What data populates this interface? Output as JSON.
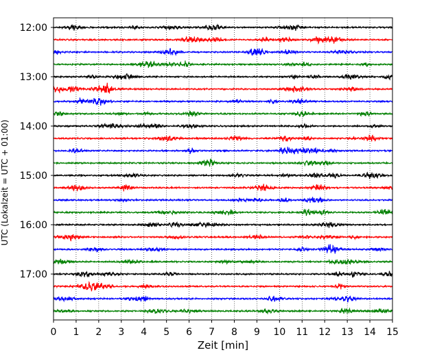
{
  "chart_data": {
    "type": "line",
    "title": "",
    "xlabel": "Zeit  [min]",
    "ylabel": "UTC (Lokalzeit = UTC + 01:00)",
    "xlim": [
      0,
      15
    ],
    "x_ticks": [
      "0",
      "1",
      "2",
      "3",
      "4",
      "5",
      "6",
      "7",
      "8",
      "9",
      "10",
      "11",
      "12",
      "13",
      "14",
      "15"
    ],
    "y_ticks": [
      "12:00",
      "13:00",
      "14:00",
      "15:00",
      "16:00",
      "17:00"
    ],
    "grid": "vertical-dotted",
    "trace_interval_min": 15,
    "trace_start": "12:00",
    "trace_colors": [
      "#000000",
      "#ff0000",
      "#0000ff",
      "#008000"
    ],
    "traces": [
      {
        "start": "12:00",
        "color": "#000000"
      },
      {
        "start": "12:15",
        "color": "#ff0000"
      },
      {
        "start": "12:30",
        "color": "#0000ff"
      },
      {
        "start": "12:45",
        "color": "#008000"
      },
      {
        "start": "13:00",
        "color": "#000000"
      },
      {
        "start": "13:15",
        "color": "#ff0000"
      },
      {
        "start": "13:30",
        "color": "#0000ff"
      },
      {
        "start": "13:45",
        "color": "#008000"
      },
      {
        "start": "14:00",
        "color": "#000000"
      },
      {
        "start": "14:15",
        "color": "#ff0000"
      },
      {
        "start": "14:30",
        "color": "#0000ff"
      },
      {
        "start": "14:45",
        "color": "#008000"
      },
      {
        "start": "15:00",
        "color": "#000000"
      },
      {
        "start": "15:15",
        "color": "#ff0000"
      },
      {
        "start": "15:30",
        "color": "#0000ff"
      },
      {
        "start": "15:45",
        "color": "#008000"
      },
      {
        "start": "16:00",
        "color": "#000000"
      },
      {
        "start": "16:15",
        "color": "#ff0000"
      },
      {
        "start": "16:30",
        "color": "#0000ff"
      },
      {
        "start": "16:45",
        "color": "#008000"
      },
      {
        "start": "17:00",
        "color": "#000000"
      },
      {
        "start": "17:15",
        "color": "#ff0000"
      },
      {
        "start": "17:30",
        "color": "#0000ff"
      },
      {
        "start": "17:45",
        "color": "#008000"
      }
    ]
  }
}
